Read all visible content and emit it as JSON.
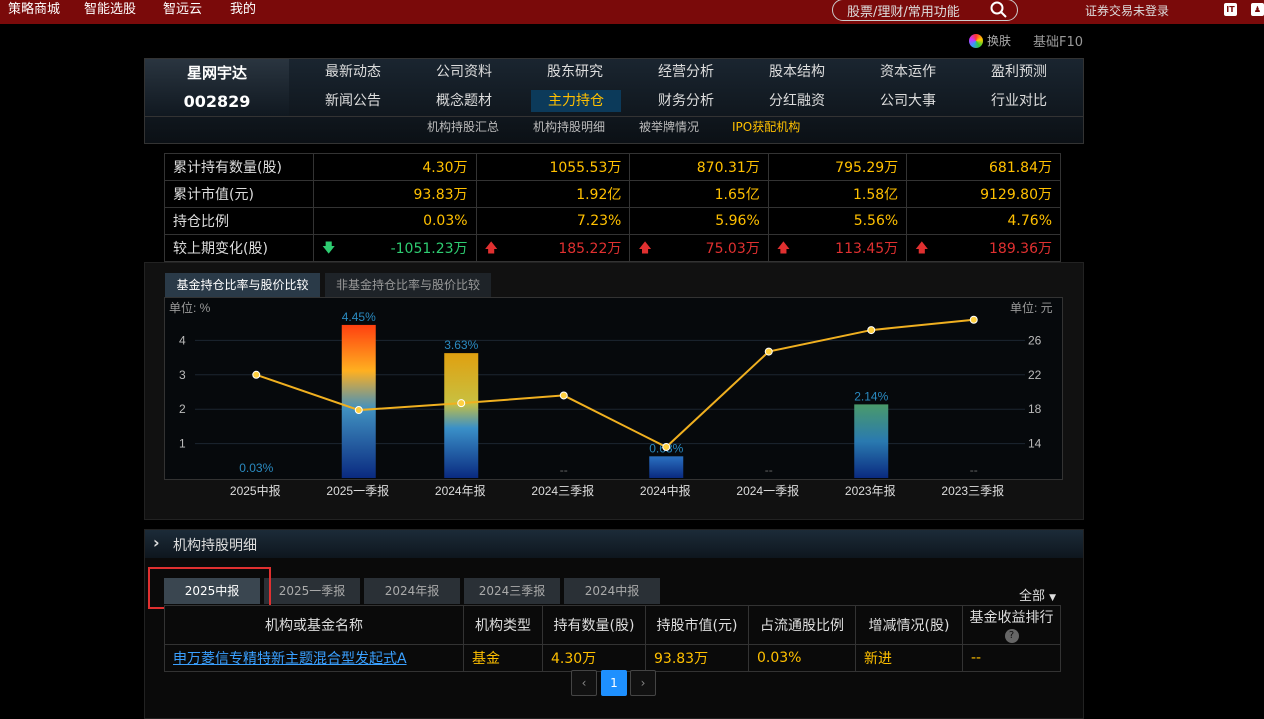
{
  "topbar": {
    "menu": [
      "策略商城",
      "智能选股",
      "智远云",
      "我的"
    ],
    "search_placeholder": "股票/理财/常用功能",
    "login_status": "证券交易未登录"
  },
  "toolbar": {
    "skin_label": "换肤",
    "f10_label": "基础F10"
  },
  "stock": {
    "name": "星网宇达",
    "code": "002829"
  },
  "nav": {
    "row1": [
      "最新动态",
      "公司资料",
      "股东研究",
      "经营分析",
      "股本结构",
      "资本运作",
      "盈利预测"
    ],
    "row2": [
      "新闻公告",
      "概念题材",
      "主力持仓",
      "财务分析",
      "分红融资",
      "公司大事",
      "行业对比"
    ],
    "active": "主力持仓",
    "sub": [
      "机构持股汇总",
      "机构持股明细",
      "被举牌情况",
      "IPO获配机构"
    ]
  },
  "summary_rows": [
    {
      "label": "累计持有数量(股)",
      "values": [
        "4.30万",
        "1055.53万",
        "870.31万",
        "795.29万",
        "681.84万"
      ]
    },
    {
      "label": "累计市值(元)",
      "values": [
        "93.83万",
        "1.92亿",
        "1.65亿",
        "1.58亿",
        "9129.80万"
      ]
    },
    {
      "label": "持仓比例",
      "values": [
        "0.03%",
        "7.23%",
        "5.96%",
        "5.56%",
        "4.76%"
      ]
    },
    {
      "label": "较上期变化(股)",
      "values": [
        "-1051.23万",
        "185.22万",
        "75.03万",
        "113.45万",
        "189.36万"
      ],
      "directions": [
        "down",
        "up",
        "up",
        "up",
        "up"
      ]
    }
  ],
  "chart_tabs": [
    "基金持仓比率与股价比较",
    "非基金持仓比率与股价比较"
  ],
  "chart_data": {
    "type": "bar",
    "categories": [
      "2025中报",
      "2025一季报",
      "2024年报",
      "2024三季报",
      "2024中报",
      "2024一季报",
      "2023年报",
      "2023三季报"
    ],
    "series": [
      {
        "values": [
          0.03,
          4.45,
          3.63,
          null,
          0.63,
          null,
          2.14,
          null
        ],
        "labels": [
          "0.03%",
          "4.45%",
          "3.63%",
          "--",
          "0.63%",
          "--",
          "2.14%",
          "--"
        ]
      },
      {
        "type": "line",
        "values": [
          22.0,
          17.9,
          18.7,
          19.6,
          13.6,
          24.7,
          27.2,
          28.4
        ]
      }
    ],
    "y_left": {
      "unit_label": "单位: %",
      "ticks": [
        "1",
        "2",
        "3",
        "4"
      ],
      "range": [
        0,
        5
      ]
    },
    "y_right": {
      "unit_label": "单位: 元",
      "ticks": [
        "14",
        "18",
        "22",
        "26"
      ],
      "range": [
        10,
        30
      ]
    },
    "colors": {
      "line": "#f0b020",
      "line_marker": "#ffd040",
      "bar_label": "#2a8ac0"
    },
    "grid": true
  },
  "detail": {
    "title": "机构持股明细",
    "period_tabs": [
      "2025中报",
      "2025一季报",
      "2024年报",
      "2024三季报",
      "2024中报"
    ],
    "active_period": "2025中报",
    "filter": "全部",
    "columns": [
      "机构或基金名称",
      "机构类型",
      "持有数量(股)",
      "持股市值(元)",
      "占流通股比例",
      "增减情况(股)",
      "基金收益排行"
    ],
    "rows": [
      {
        "name": "申万菱信专精特新主题混合型发起式A",
        "type": "基金",
        "qty": "4.30万",
        "value": "93.83万",
        "ratio": "0.03%",
        "change": "新进",
        "rank": "--"
      }
    ],
    "pagination": {
      "current": "1",
      "prev": "‹",
      "next": "›"
    }
  }
}
